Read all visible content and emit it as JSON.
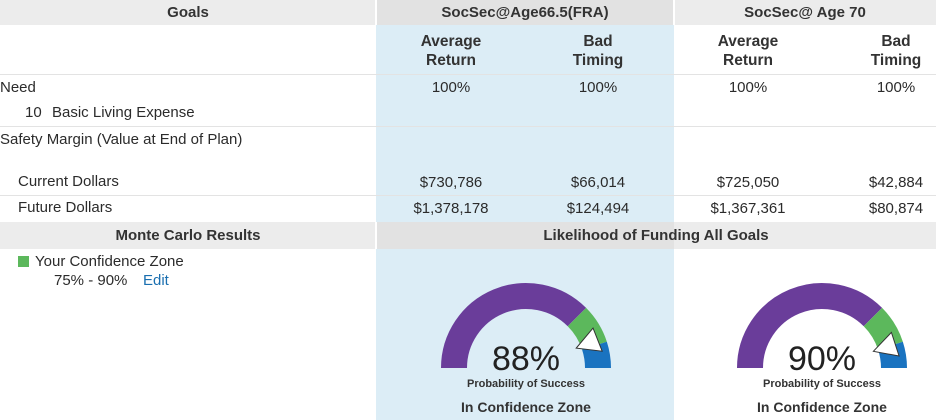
{
  "header": {
    "goals": "Goals",
    "scenario1": "SocSec@Age66.5(FRA)",
    "scenario2": "SocSec@ Age 70"
  },
  "subheaders": {
    "avg_line1": "Average",
    "avg_line2": "Return",
    "bad_line1": "Bad",
    "bad_line2": "Timing"
  },
  "rows": {
    "need_label": "Need",
    "basic_num": "10",
    "basic_label": "Basic Living Expense",
    "need_values": [
      "100%",
      "100%",
      "100%",
      "100%"
    ],
    "safety_label": "Safety Margin (Value at End of Plan)",
    "current_label": "Current Dollars",
    "current_values": [
      "$730,786",
      "$66,014",
      "$725,050",
      "$42,884"
    ],
    "future_label": "Future Dollars",
    "future_values": [
      "$1,378,178",
      "$124,494",
      "$1,367,361",
      "$80,874"
    ]
  },
  "monte_carlo": {
    "title": "Monte Carlo Results",
    "likelihood_title": "Likelihood of Funding All Goals",
    "legend_label": "Your Confidence Zone",
    "range": "75% - 90%",
    "edit_label": "Edit"
  },
  "gauges": [
    {
      "percent": 88,
      "label": "88%",
      "sublabel": "Probability of Success",
      "status": "In Confidence Zone"
    },
    {
      "percent": 90,
      "label": "90%",
      "sublabel": "Probability of Success",
      "status": "In Confidence Zone"
    }
  ],
  "colors": {
    "purple": "#6a3d9a",
    "green": "#5cb85c",
    "blue": "#1a73c0",
    "highlight": "#dcedf6"
  }
}
